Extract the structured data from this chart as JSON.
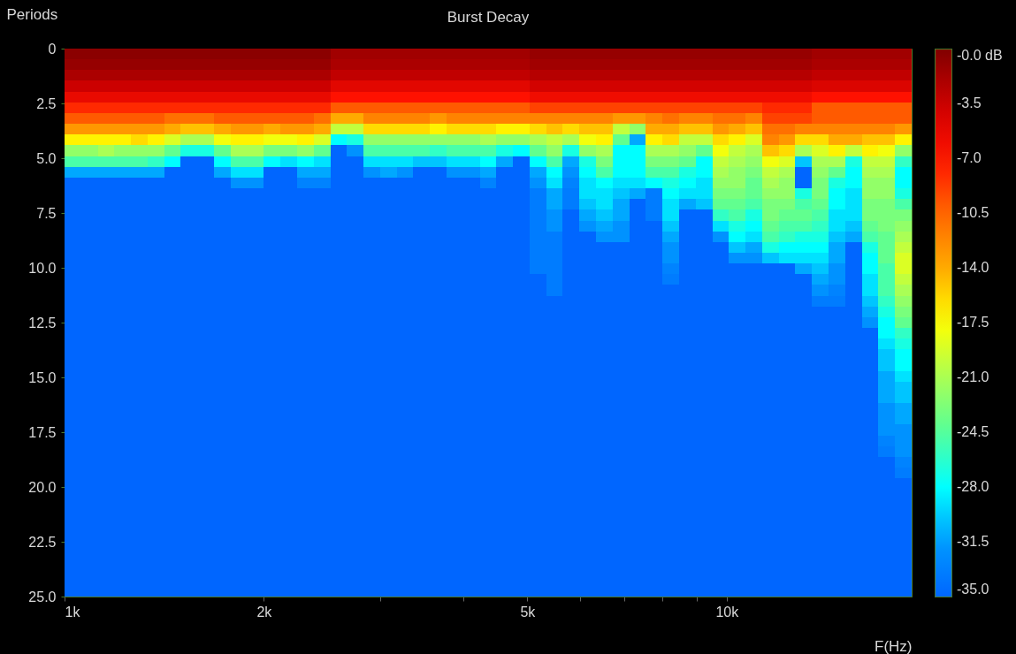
{
  "chart_data": {
    "type": "heatmap",
    "title": "Burst Decay",
    "xlabel": "F(Hz)",
    "ylabel": "Periods",
    "log": "x",
    "x": [
      1029,
      1091,
      1155,
      1223,
      1296,
      1373,
      1455,
      1542,
      1633,
      1730,
      1833,
      1942,
      2058,
      2181,
      2311,
      2448,
      2594,
      2748,
      2911,
      3084,
      3268,
      3462,
      3668,
      3886,
      4117,
      4362,
      4621,
      4896,
      5187,
      5495,
      5822,
      6169,
      6535,
      6924,
      7336,
      7772,
      8234,
      8723,
      9242,
      9791,
      10374,
      10991,
      11644,
      12336,
      13070,
      13847,
      14670,
      15543,
      16467,
      17446,
      18483
    ],
    "xlim": [
      1000,
      19027
    ],
    "xticks": [
      {
        "value": 1000,
        "label": "1k"
      },
      {
        "value": 2000,
        "label": "2k"
      },
      {
        "value": 3000,
        "label": null
      },
      {
        "value": 4000,
        "label": null
      },
      {
        "value": 5000,
        "label": "5k"
      },
      {
        "value": 6000,
        "label": null
      },
      {
        "value": 7000,
        "label": null
      },
      {
        "value": 8000,
        "label": null
      },
      {
        "value": 9000,
        "label": null
      },
      {
        "value": 10000,
        "label": "10k"
      }
    ],
    "ylim": [
      25,
      0
    ],
    "yticks": [
      0,
      2.5,
      {
        "value": 5,
        "label": "5.0"
      },
      7.5,
      {
        "value": 10,
        "label": "10.0"
      },
      12.5,
      {
        "value": 15,
        "label": "15.0"
      },
      17.5,
      {
        "value": 20,
        "label": "20.0"
      },
      22.5,
      {
        "value": 25,
        "label": "25.0"
      }
    ],
    "clim": [
      -35,
      0
    ],
    "cticks": [
      {
        "value": 0,
        "label": "-0.0 dB"
      },
      -3.5,
      {
        "value": -7,
        "label": "-7.0"
      },
      -10.5,
      {
        "value": -14,
        "label": "-14.0"
      },
      -17.5,
      {
        "value": -21,
        "label": "-21.0"
      },
      -24.5,
      {
        "value": -28,
        "label": "-28.0"
      },
      -31.5,
      {
        "value": -35,
        "label": "-35.0"
      }
    ],
    "cells": [
      [
        -0.5,
        -0.5,
        -0.5,
        -0.5,
        -0.5,
        -0.5,
        -0.5,
        -0.5,
        -0.5,
        -0.5,
        -0.5,
        -0.5,
        -0.5,
        -0.5,
        -0.5,
        -0.5,
        -1.5,
        -1.5,
        -1.5,
        -1.5,
        -1.5,
        -1.5,
        -1.5,
        -1.5,
        -1.5,
        -1.5,
        -1.5,
        -1.5,
        -1,
        -1,
        -1,
        -1,
        -1,
        -1,
        -1,
        -1,
        -1,
        -1,
        -1,
        -1,
        -1,
        -1,
        -1,
        -1,
        -1,
        -1.5,
        -1.5,
        -1.5,
        -1.5,
        -1.5,
        -1.5
      ],
      [
        -1,
        -1,
        -1,
        -1,
        -1,
        -1,
        -1,
        -1,
        -1,
        -1,
        -1,
        -1,
        -1,
        -1,
        -1,
        -1,
        -2,
        -2,
        -2,
        -2,
        -2,
        -2,
        -2,
        -2,
        -2,
        -2,
        -2,
        -2,
        -1.5,
        -1.5,
        -1.5,
        -1.5,
        -1.5,
        -1.5,
        -1.5,
        -1.5,
        -1.5,
        -1.5,
        -1.5,
        -1.5,
        -1.5,
        -1.5,
        -1.5,
        -1.5,
        -1.5,
        -2,
        -2,
        -2,
        -2,
        -2,
        -2
      ],
      [
        -2,
        -2,
        -2,
        -2,
        -2,
        -2,
        -2,
        -2,
        -2,
        -2,
        -2,
        -2,
        -2,
        -2,
        -2,
        -2,
        -3,
        -3,
        -3,
        -3,
        -3,
        -3,
        -3,
        -3,
        -3,
        -3,
        -3,
        -3,
        -2.5,
        -2.5,
        -2.5,
        -2.5,
        -2.5,
        -2.5,
        -2.5,
        -2.5,
        -2.5,
        -2.5,
        -2.5,
        -2.5,
        -2.5,
        -2.5,
        -2.5,
        -2.5,
        -2.5,
        -3,
        -3,
        -3,
        -3,
        -3,
        -3
      ],
      [
        -3.5,
        -3.5,
        -3.5,
        -3.5,
        -3.5,
        -3.5,
        -3.5,
        -3.5,
        -3.5,
        -3.5,
        -3.5,
        -3.5,
        -3.5,
        -3.5,
        -3.5,
        -3.5,
        -5,
        -5,
        -5,
        -5,
        -5,
        -5,
        -5,
        -5,
        -5,
        -5,
        -5,
        -5,
        -4,
        -4,
        -4,
        -4,
        -4,
        -4,
        -4,
        -4,
        -4,
        -4,
        -4,
        -4,
        -4,
        -4,
        -4,
        -4,
        -4,
        -4.5,
        -4.5,
        -4.5,
        -4.5,
        -4.5,
        -4.5
      ],
      [
        -5.5,
        -5.5,
        -5.5,
        -5.5,
        -5.5,
        -5.5,
        -5.5,
        -5.5,
        -5.5,
        -5.5,
        -5.5,
        -5.5,
        -5.5,
        -5.5,
        -5.5,
        -5.5,
        -7,
        -7,
        -7,
        -7,
        -7,
        -7,
        -7,
        -7,
        -7,
        -7,
        -7,
        -7,
        -6,
        -6,
        -6,
        -6,
        -6,
        -6,
        -6,
        -6,
        -6,
        -6,
        -6,
        -6,
        -6,
        -6,
        -6,
        -6,
        -6,
        -7,
        -7,
        -7,
        -7,
        -7,
        -7
      ],
      [
        -8,
        -8,
        -8,
        -8,
        -8,
        -8,
        -8,
        -8,
        -8,
        -8,
        -8,
        -8,
        -8,
        -8,
        -8,
        -8,
        -10,
        -10,
        -10,
        -10,
        -10,
        -10,
        -10,
        -10,
        -10,
        -10,
        -10,
        -10,
        -9,
        -9,
        -9,
        -9,
        -9,
        -9,
        -9,
        -9,
        -9,
        -9,
        -9,
        -9,
        -9,
        -9,
        -8,
        -8,
        -8,
        -10,
        -10,
        -10,
        -10,
        -10,
        -10
      ],
      [
        -10,
        -10,
        -10,
        -10,
        -10,
        -10,
        -11,
        -11,
        -11,
        -10,
        -10,
        -10,
        -10,
        -10,
        -10,
        -11,
        -14,
        -14,
        -12,
        -12,
        -12,
        -12,
        -13,
        -12,
        -12,
        -12,
        -12,
        -12,
        -12,
        -12,
        -12,
        -12,
        -12,
        -13,
        -13,
        -12,
        -11,
        -12,
        -12,
        -11,
        -11,
        -12,
        -9,
        -9,
        -9,
        -10,
        -10,
        -10,
        -10,
        -10,
        -10
      ],
      [
        -13,
        -13,
        -13,
        -13,
        -13,
        -13,
        -14,
        -15,
        -15,
        -14,
        -13,
        -13,
        -14,
        -13,
        -13,
        -14,
        -20,
        -20,
        -16,
        -16,
        -16,
        -16,
        -17,
        -16,
        -16,
        -16,
        -17,
        -17,
        -16,
        -15,
        -16,
        -15,
        -15,
        -20,
        -22,
        -14,
        -14,
        -15,
        -15,
        -13,
        -14,
        -15,
        -11,
        -11,
        -12,
        -12,
        -12,
        -12,
        -12,
        -12,
        -13
      ],
      [
        -17,
        -17,
        -17,
        -17,
        -16,
        -17,
        -19,
        -21,
        -21,
        -18,
        -17,
        -17,
        -18,
        -18,
        -17,
        -19,
        -28,
        -27,
        -22,
        -22,
        -22,
        -22,
        -22,
        -22,
        -22,
        -21,
        -22,
        -22,
        -21,
        -20,
        -21,
        -18,
        -17,
        -24,
        -31,
        -17,
        -16,
        -20,
        -20,
        -16,
        -17,
        -19,
        -12,
        -13,
        -16,
        -16,
        -14,
        -14,
        -15,
        -15,
        -17
      ],
      [
        -22,
        -22,
        -21,
        -22,
        -22,
        -22,
        -24,
        -27,
        -27,
        -24,
        -21,
        -21,
        -23,
        -23,
        -22,
        -24,
        -35,
        -32,
        -25,
        -25,
        -25,
        -25,
        -26,
        -25,
        -25,
        -25,
        -27,
        -28,
        -24,
        -22,
        -27,
        -22,
        -21,
        -28,
        -28,
        -21,
        -21,
        -22,
        -24,
        -18,
        -20,
        -21,
        -15,
        -16,
        -21,
        -19,
        -17,
        -20,
        -17,
        -18,
        -22
      ],
      [
        -25,
        -25,
        -25,
        -25,
        -25,
        -26,
        -28,
        -35,
        -35,
        -28,
        -25,
        -25,
        -28,
        -29,
        -28,
        -29,
        -35,
        -35,
        -29,
        -29,
        -29,
        -30,
        -30,
        -29,
        -29,
        -28,
        -31,
        -35,
        -28,
        -25,
        -31,
        -27,
        -23,
        -28,
        -28,
        -23,
        -23,
        -24,
        -28,
        -20,
        -21,
        -22,
        -18,
        -19,
        -30,
        -21,
        -21,
        -27,
        -20,
        -20,
        -26
      ],
      [
        -31,
        -31,
        -31,
        -31,
        -31,
        -31,
        -35,
        -35,
        -35,
        -31,
        -29,
        -29,
        -35,
        -35,
        -31,
        -31,
        -35,
        -35,
        -32,
        -31,
        -32,
        -35,
        -35,
        -32,
        -32,
        -31,
        -35,
        -35,
        -31,
        -28,
        -32,
        -28,
        -25,
        -28,
        -28,
        -25,
        -25,
        -27,
        -28,
        -21,
        -22,
        -23,
        -20,
        -21,
        -35,
        -22,
        -24,
        -28,
        -21,
        -21,
        -28
      ],
      [
        -35,
        -35,
        -35,
        -35,
        -35,
        -35,
        -35,
        -35,
        -35,
        -35,
        -32,
        -32,
        -35,
        -35,
        -33,
        -33,
        -35,
        -35,
        -35,
        -35,
        -35,
        -35,
        -35,
        -35,
        -35,
        -33,
        -35,
        -35,
        -32,
        -29,
        -33,
        -29,
        -28,
        -29,
        -29,
        -28,
        -27,
        -28,
        -29,
        -22,
        -22,
        -24,
        -21,
        -22,
        -35,
        -23,
        -27,
        -28,
        -22,
        -22,
        -28
      ],
      [
        -35,
        -35,
        -35,
        -35,
        -35,
        -35,
        -35,
        -35,
        -35,
        -35,
        -35,
        -35,
        -35,
        -35,
        -35,
        -35,
        -35,
        -35,
        -35,
        -35,
        -35,
        -35,
        -35,
        -35,
        -35,
        -35,
        -35,
        -35,
        -33.5,
        -31,
        -33.5,
        -29,
        -29,
        -30,
        -31,
        -33.5,
        -28,
        -29,
        -29,
        -23,
        -23,
        -24,
        -22,
        -22,
        -27,
        -23,
        -28,
        -29,
        -22,
        -22,
        -27
      ],
      [
        -35,
        -35,
        -35,
        -35,
        -35,
        -35,
        -35,
        -35,
        -35,
        -35,
        -35,
        -35,
        -35,
        -35,
        -35,
        -35,
        -35,
        -35,
        -35,
        -35,
        -35,
        -35,
        -35,
        -35,
        -35,
        -35,
        -35,
        -35,
        -33.5,
        -31,
        -33.5,
        -30,
        -29,
        -31,
        -35,
        -33.5,
        -29,
        -31,
        -30,
        -24,
        -24,
        -25,
        -23,
        -23,
        -25,
        -24,
        -28,
        -29,
        -23,
        -23,
        -25
      ],
      [
        -35,
        -35,
        -35,
        -35,
        -35,
        -35,
        -35,
        -35,
        -35,
        -35,
        -35,
        -35,
        -35,
        -35,
        -35,
        -35,
        -35,
        -35,
        -35,
        -35,
        -35,
        -35,
        -35,
        -35,
        -35,
        -35,
        -35,
        -35,
        -33.5,
        -32,
        -35,
        -31,
        -30,
        -31,
        -35,
        -33.5,
        -29,
        -35,
        -35,
        -26,
        -25,
        -27,
        -23,
        -24,
        -24,
        -25,
        -29,
        -29,
        -23,
        -23,
        -23
      ],
      [
        -35,
        -35,
        -35,
        -35,
        -35,
        -35,
        -35,
        -35,
        -35,
        -35,
        -35,
        -35,
        -35,
        -35,
        -35,
        -35,
        -35,
        -35,
        -35,
        -35,
        -35,
        -35,
        -35,
        -35,
        -35,
        -35,
        -35,
        -35,
        -33.5,
        -32,
        -35,
        -32,
        -31,
        -32,
        -35,
        -35,
        -30,
        -35,
        -35,
        -29,
        -27,
        -28,
        -24,
        -25,
        -25,
        -26,
        -29,
        -30,
        -24,
        -23,
        -22
      ],
      [
        -35,
        -35,
        -35,
        -35,
        -35,
        -35,
        -35,
        -35,
        -35,
        -35,
        -35,
        -35,
        -35,
        -35,
        -35,
        -35,
        -35,
        -35,
        -35,
        -35,
        -35,
        -35,
        -35,
        -35,
        -35,
        -35,
        -35,
        -35,
        -33.5,
        -33.5,
        -35,
        -35,
        -32,
        -32,
        -35,
        -35,
        -31,
        -35,
        -35,
        -32,
        -28,
        -29,
        -25,
        -26,
        -27,
        -27,
        -30,
        -31,
        -25,
        -24,
        -21
      ],
      [
        -35,
        -35,
        -35,
        -35,
        -35,
        -35,
        -35,
        -35,
        -35,
        -35,
        -35,
        -35,
        -35,
        -35,
        -35,
        -35,
        -35,
        -35,
        -35,
        -35,
        -35,
        -35,
        -35,
        -35,
        -35,
        -35,
        -35,
        -35,
        -33.5,
        -33.5,
        -35,
        -35,
        -35,
        -35,
        -35,
        -35,
        -32,
        -35,
        -35,
        -35,
        -30,
        -31,
        -27,
        -28,
        -28,
        -28,
        -31,
        -35,
        -27,
        -24,
        -20
      ],
      [
        -35,
        -35,
        -35,
        -35,
        -35,
        -35,
        -35,
        -35,
        -35,
        -35,
        -35,
        -35,
        -35,
        -35,
        -35,
        -35,
        -35,
        -35,
        -35,
        -35,
        -35,
        -35,
        -35,
        -35,
        -35,
        -35,
        -35,
        -35,
        -33.5,
        -33.5,
        -35,
        -35,
        -35,
        -35,
        -35,
        -35,
        -32,
        -35,
        -35,
        -35,
        -32,
        -32,
        -30,
        -29,
        -29,
        -29,
        -31,
        -35,
        -28,
        -24,
        -19
      ],
      [
        -35,
        -35,
        -35,
        -35,
        -35,
        -35,
        -35,
        -35,
        -35,
        -35,
        -35,
        -35,
        -35,
        -35,
        -35,
        -35,
        -35,
        -35,
        -35,
        -35,
        -35,
        -35,
        -35,
        -35,
        -35,
        -35,
        -35,
        -35,
        -33.5,
        -33.5,
        -35,
        -35,
        -35,
        -35,
        -35,
        -35,
        -33,
        -35,
        -35,
        -35,
        -35,
        -35,
        -35,
        -35,
        -31,
        -30,
        -32,
        -35,
        -28,
        -25,
        -19
      ],
      [
        -35,
        -35,
        -35,
        -35,
        -35,
        -35,
        -35,
        -35,
        -35,
        -35,
        -35,
        -35,
        -35,
        -35,
        -35,
        -35,
        -35,
        -35,
        -35,
        -35,
        -35,
        -35,
        -35,
        -35,
        -35,
        -35,
        -35,
        -35,
        -35,
        -33.5,
        -35,
        -35,
        -35,
        -35,
        -35,
        -35,
        -33.5,
        -35,
        -35,
        -35,
        -35,
        -35,
        -35,
        -35,
        -35,
        -31,
        -32,
        -35,
        -29,
        -25,
        -20
      ],
      [
        -35,
        -35,
        -35,
        -35,
        -35,
        -35,
        -35,
        -35,
        -35,
        -35,
        -35,
        -35,
        -35,
        -35,
        -35,
        -35,
        -35,
        -35,
        -35,
        -35,
        -35,
        -35,
        -35,
        -35,
        -35,
        -35,
        -35,
        -35,
        -35,
        -33.5,
        -35,
        -35,
        -35,
        -35,
        -35,
        -35,
        -35,
        -35,
        -35,
        -35,
        -35,
        -35,
        -35,
        -35,
        -35,
        -32,
        -33,
        -35,
        -29,
        -25,
        -21
      ],
      [
        -35,
        -35,
        -35,
        -35,
        -35,
        -35,
        -35,
        -35,
        -35,
        -35,
        -35,
        -35,
        -35,
        -35,
        -35,
        -35,
        -35,
        -35,
        -35,
        -35,
        -35,
        -35,
        -35,
        -35,
        -35,
        -35,
        -35,
        -35,
        -35,
        -35,
        -35,
        -35,
        -35,
        -35,
        -35,
        -35,
        -35,
        -35,
        -35,
        -35,
        -35,
        -35,
        -35,
        -35,
        -35,
        -33.5,
        -33.5,
        -35,
        -30,
        -26,
        -22
      ],
      [
        -35,
        -35,
        -35,
        -35,
        -35,
        -35,
        -35,
        -35,
        -35,
        -35,
        -35,
        -35,
        -35,
        -35,
        -35,
        -35,
        -35,
        -35,
        -35,
        -35,
        -35,
        -35,
        -35,
        -35,
        -35,
        -35,
        -35,
        -35,
        -35,
        -35,
        -35,
        -35,
        -35,
        -35,
        -35,
        -35,
        -35,
        -35,
        -35,
        -35,
        -35,
        -35,
        -35,
        -35,
        -35,
        -35,
        -35,
        -35,
        -31,
        -27,
        -23
      ],
      [
        -35,
        -35,
        -35,
        -35,
        -35,
        -35,
        -35,
        -35,
        -35,
        -35,
        -35,
        -35,
        -35,
        -35,
        -35,
        -35,
        -35,
        -35,
        -35,
        -35,
        -35,
        -35,
        -35,
        -35,
        -35,
        -35,
        -35,
        -35,
        -35,
        -35,
        -35,
        -35,
        -35,
        -35,
        -35,
        -35,
        -35,
        -35,
        -35,
        -35,
        -35,
        -35,
        -35,
        -35,
        -35,
        -35,
        -35,
        -35,
        -32,
        -28,
        -24
      ],
      [
        -35,
        -35,
        -35,
        -35,
        -35,
        -35,
        -35,
        -35,
        -35,
        -35,
        -35,
        -35,
        -35,
        -35,
        -35,
        -35,
        -35,
        -35,
        -35,
        -35,
        -35,
        -35,
        -35,
        -35,
        -35,
        -35,
        -35,
        -35,
        -35,
        -35,
        -35,
        -35,
        -35,
        -35,
        -35,
        -35,
        -35,
        -35,
        -35,
        -35,
        -35,
        -35,
        -35,
        -35,
        -35,
        -35,
        -35,
        -35,
        -35,
        -28,
        -26
      ],
      [
        -35,
        -35,
        -35,
        -35,
        -35,
        -35,
        -35,
        -35,
        -35,
        -35,
        -35,
        -35,
        -35,
        -35,
        -35,
        -35,
        -35,
        -35,
        -35,
        -35,
        -35,
        -35,
        -35,
        -35,
        -35,
        -35,
        -35,
        -35,
        -35,
        -35,
        -35,
        -35,
        -35,
        -35,
        -35,
        -35,
        -35,
        -35,
        -35,
        -35,
        -35,
        -35,
        -35,
        -35,
        -35,
        -35,
        -35,
        -35,
        -35,
        -29,
        -27
      ],
      [
        -35,
        -35,
        -35,
        -35,
        -35,
        -35,
        -35,
        -35,
        -35,
        -35,
        -35,
        -35,
        -35,
        -35,
        -35,
        -35,
        -35,
        -35,
        -35,
        -35,
        -35,
        -35,
        -35,
        -35,
        -35,
        -35,
        -35,
        -35,
        -35,
        -35,
        -35,
        -35,
        -35,
        -35,
        -35,
        -35,
        -35,
        -35,
        -35,
        -35,
        -35,
        -35,
        -35,
        -35,
        -35,
        -35,
        -35,
        -35,
        -35,
        -30,
        -28
      ],
      [
        -35,
        -35,
        -35,
        -35,
        -35,
        -35,
        -35,
        -35,
        -35,
        -35,
        -35,
        -35,
        -35,
        -35,
        -35,
        -35,
        -35,
        -35,
        -35,
        -35,
        -35,
        -35,
        -35,
        -35,
        -35,
        -35,
        -35,
        -35,
        -35,
        -35,
        -35,
        -35,
        -35,
        -35,
        -35,
        -35,
        -35,
        -35,
        -35,
        -35,
        -35,
        -35,
        -35,
        -35,
        -35,
        -35,
        -35,
        -35,
        -35,
        -30,
        -28
      ],
      [
        -35,
        -35,
        -35,
        -35,
        -35,
        -35,
        -35,
        -35,
        -35,
        -35,
        -35,
        -35,
        -35,
        -35,
        -35,
        -35,
        -35,
        -35,
        -35,
        -35,
        -35,
        -35,
        -35,
        -35,
        -35,
        -35,
        -35,
        -35,
        -35,
        -35,
        -35,
        -35,
        -35,
        -35,
        -35,
        -35,
        -35,
        -35,
        -35,
        -35,
        -35,
        -35,
        -35,
        -35,
        -35,
        -35,
        -35,
        -35,
        -35,
        -31,
        -29
      ],
      [
        -35,
        -35,
        -35,
        -35,
        -35,
        -35,
        -35,
        -35,
        -35,
        -35,
        -35,
        -35,
        -35,
        -35,
        -35,
        -35,
        -35,
        -35,
        -35,
        -35,
        -35,
        -35,
        -35,
        -35,
        -35,
        -35,
        -35,
        -35,
        -35,
        -35,
        -35,
        -35,
        -35,
        -35,
        -35,
        -35,
        -35,
        -35,
        -35,
        -35,
        -35,
        -35,
        -35,
        -35,
        -35,
        -35,
        -35,
        -35,
        -35,
        -31,
        -30
      ],
      [
        -35,
        -35,
        -35,
        -35,
        -35,
        -35,
        -35,
        -35,
        -35,
        -35,
        -35,
        -35,
        -35,
        -35,
        -35,
        -35,
        -35,
        -35,
        -35,
        -35,
        -35,
        -35,
        -35,
        -35,
        -35,
        -35,
        -35,
        -35,
        -35,
        -35,
        -35,
        -35,
        -35,
        -35,
        -35,
        -35,
        -35,
        -35,
        -35,
        -35,
        -35,
        -35,
        -35,
        -35,
        -35,
        -35,
        -35,
        -35,
        -35,
        -31,
        -30
      ],
      [
        -35,
        -35,
        -35,
        -35,
        -35,
        -35,
        -35,
        -35,
        -35,
        -35,
        -35,
        -35,
        -35,
        -35,
        -35,
        -35,
        -35,
        -35,
        -35,
        -35,
        -35,
        -35,
        -35,
        -35,
        -35,
        -35,
        -35,
        -35,
        -35,
        -35,
        -35,
        -35,
        -35,
        -35,
        -35,
        -35,
        -35,
        -35,
        -35,
        -35,
        -35,
        -35,
        -35,
        -35,
        -35,
        -35,
        -35,
        -35,
        -35,
        -32,
        -31
      ],
      [
        -35,
        -35,
        -35,
        -35,
        -35,
        -35,
        -35,
        -35,
        -35,
        -35,
        -35,
        -35,
        -35,
        -35,
        -35,
        -35,
        -35,
        -35,
        -35,
        -35,
        -35,
        -35,
        -35,
        -35,
        -35,
        -35,
        -35,
        -35,
        -35,
        -35,
        -35,
        -35,
        -35,
        -35,
        -35,
        -35,
        -35,
        -35,
        -35,
        -35,
        -35,
        -35,
        -35,
        -35,
        -35,
        -35,
        -35,
        -35,
        -35,
        -32,
        -31
      ],
      [
        -35,
        -35,
        -35,
        -35,
        -35,
        -35,
        -35,
        -35,
        -35,
        -35,
        -35,
        -35,
        -35,
        -35,
        -35,
        -35,
        -35,
        -35,
        -35,
        -35,
        -35,
        -35,
        -35,
        -35,
        -35,
        -35,
        -35,
        -35,
        -35,
        -35,
        -35,
        -35,
        -35,
        -35,
        -35,
        -35,
        -35,
        -35,
        -35,
        -35,
        -35,
        -35,
        -35,
        -35,
        -35,
        -35,
        -35,
        -35,
        -35,
        -32,
        -32
      ],
      [
        -35,
        -35,
        -35,
        -35,
        -35,
        -35,
        -35,
        -35,
        -35,
        -35,
        -35,
        -35,
        -35,
        -35,
        -35,
        -35,
        -35,
        -35,
        -35,
        -35,
        -35,
        -35,
        -35,
        -35,
        -35,
        -35,
        -35,
        -35,
        -35,
        -35,
        -35,
        -35,
        -35,
        -35,
        -35,
        -35,
        -35,
        -35,
        -35,
        -35,
        -35,
        -35,
        -35,
        -35,
        -35,
        -35,
        -35,
        -35,
        -35,
        -33,
        -32
      ],
      [
        -35,
        -35,
        -35,
        -35,
        -35,
        -35,
        -35,
        -35,
        -35,
        -35,
        -35,
        -35,
        -35,
        -35,
        -35,
        -35,
        -35,
        -35,
        -35,
        -35,
        -35,
        -35,
        -35,
        -35,
        -35,
        -35,
        -35,
        -35,
        -35,
        -35,
        -35,
        -35,
        -35,
        -35,
        -35,
        -35,
        -35,
        -35,
        -35,
        -35,
        -35,
        -35,
        -35,
        -35,
        -35,
        -35,
        -35,
        -35,
        -35,
        -33.5,
        -32
      ],
      [
        -35,
        -35,
        -35,
        -35,
        -35,
        -35,
        -35,
        -35,
        -35,
        -35,
        -35,
        -35,
        -35,
        -35,
        -35,
        -35,
        -35,
        -35,
        -35,
        -35,
        -35,
        -35,
        -35,
        -35,
        -35,
        -35,
        -35,
        -35,
        -35,
        -35,
        -35,
        -35,
        -35,
        -35,
        -35,
        -35,
        -35,
        -35,
        -35,
        -35,
        -35,
        -35,
        -35,
        -35,
        -35,
        -35,
        -35,
        -35,
        -35,
        -35,
        -33
      ],
      [
        -35,
        -35,
        -35,
        -35,
        -35,
        -35,
        -35,
        -35,
        -35,
        -35,
        -35,
        -35,
        -35,
        -35,
        -35,
        -35,
        -35,
        -35,
        -35,
        -35,
        -35,
        -35,
        -35,
        -35,
        -35,
        -35,
        -35,
        -35,
        -35,
        -35,
        -35,
        -35,
        -35,
        -35,
        -35,
        -35,
        -35,
        -35,
        -35,
        -35,
        -35,
        -35,
        -35,
        -35,
        -35,
        -35,
        -35,
        -35,
        -35,
        -35,
        -33.5
      ],
      [
        -35,
        -35,
        -35,
        -35,
        -35,
        -35,
        -35,
        -35,
        -35,
        -35,
        -35,
        -35,
        -35,
        -35,
        -35,
        -35,
        -35,
        -35,
        -35,
        -35,
        -35,
        -35,
        -35,
        -35,
        -35,
        -35,
        -35,
        -35,
        -35,
        -35,
        -35,
        -35,
        -35,
        -35,
        -35,
        -35,
        -35,
        -35,
        -35,
        -35,
        -35,
        -35,
        -35,
        -35,
        -35,
        -35,
        -35,
        -35,
        -35,
        -35,
        -35
      ],
      [
        -35,
        -35,
        -35,
        -35,
        -35,
        -35,
        -35,
        -35,
        -35,
        -35,
        -35,
        -35,
        -35,
        -35,
        -35,
        -35,
        -35,
        -35,
        -35,
        -35,
        -35,
        -35,
        -35,
        -35,
        -35,
        -35,
        -35,
        -35,
        -35,
        -35,
        -35,
        -35,
        -35,
        -35,
        -35,
        -35,
        -35,
        -35,
        -35,
        -35,
        -35,
        -35,
        -35,
        -35,
        -35,
        -35,
        -35,
        -35,
        -35,
        -35,
        -35
      ],
      [
        -35,
        -35,
        -35,
        -35,
        -35,
        -35,
        -35,
        -35,
        -35,
        -35,
        -35,
        -35,
        -35,
        -35,
        -35,
        -35,
        -35,
        -35,
        -35,
        -35,
        -35,
        -35,
        -35,
        -35,
        -35,
        -35,
        -35,
        -35,
        -35,
        -35,
        -35,
        -35,
        -35,
        -35,
        -35,
        -35,
        -35,
        -35,
        -35,
        -35,
        -35,
        -35,
        -35,
        -35,
        -35,
        -35,
        -35,
        -35,
        -35,
        -35,
        -35
      ],
      [
        -35,
        -35,
        -35,
        -35,
        -35,
        -35,
        -35,
        -35,
        -35,
        -35,
        -35,
        -35,
        -35,
        -35,
        -35,
        -35,
        -35,
        -35,
        -35,
        -35,
        -35,
        -35,
        -35,
        -35,
        -35,
        -35,
        -35,
        -35,
        -35,
        -35,
        -35,
        -35,
        -35,
        -35,
        -35,
        -35,
        -35,
        -35,
        -35,
        -35,
        -35,
        -35,
        -35,
        -35,
        -35,
        -35,
        -35,
        -35,
        -35,
        -35,
        -35
      ],
      [
        -35,
        -35,
        -35,
        -35,
        -35,
        -35,
        -35,
        -35,
        -35,
        -35,
        -35,
        -35,
        -35,
        -35,
        -35,
        -35,
        -35,
        -35,
        -35,
        -35,
        -35,
        -35,
        -35,
        -35,
        -35,
        -35,
        -35,
        -35,
        -35,
        -35,
        -35,
        -35,
        -35,
        -35,
        -35,
        -35,
        -35,
        -35,
        -35,
        -35,
        -35,
        -35,
        -35,
        -35,
        -35,
        -35,
        -35,
        -35,
        -35,
        -35,
        -35
      ],
      [
        -35,
        -35,
        -35,
        -35,
        -35,
        -35,
        -35,
        -35,
        -35,
        -35,
        -35,
        -35,
        -35,
        -35,
        -35,
        -35,
        -35,
        -35,
        -35,
        -35,
        -35,
        -35,
        -35,
        -35,
        -35,
        -35,
        -35,
        -35,
        -35,
        -35,
        -35,
        -35,
        -35,
        -35,
        -35,
        -35,
        -35,
        -35,
        -35,
        -35,
        -35,
        -35,
        -35,
        -35,
        -35,
        -35,
        -35,
        -35,
        -35,
        -35,
        -35
      ],
      [
        -35,
        -35,
        -35,
        -35,
        -35,
        -35,
        -35,
        -35,
        -35,
        -35,
        -35,
        -35,
        -35,
        -35,
        -35,
        -35,
        -35,
        -35,
        -35,
        -35,
        -35,
        -35,
        -35,
        -35,
        -35,
        -35,
        -35,
        -35,
        -35,
        -35,
        -35,
        -35,
        -35,
        -35,
        -35,
        -35,
        -35,
        -35,
        -35,
        -35,
        -35,
        -35,
        -35,
        -35,
        -35,
        -35,
        -35,
        -35,
        -35,
        -35,
        -35
      ],
      [
        -35,
        -35,
        -35,
        -35,
        -35,
        -35,
        -35,
        -35,
        -35,
        -35,
        -35,
        -35,
        -35,
        -35,
        -35,
        -35,
        -35,
        -35,
        -35,
        -35,
        -35,
        -35,
        -35,
        -35,
        -35,
        -35,
        -35,
        -35,
        -35,
        -35,
        -35,
        -35,
        -35,
        -35,
        -35,
        -35,
        -35,
        -35,
        -35,
        -35,
        -35,
        -35,
        -35,
        -35,
        -35,
        -35,
        -35,
        -35,
        -35,
        -35,
        -35
      ],
      [
        -35,
        -35,
        -35,
        -35,
        -35,
        -35,
        -35,
        -35,
        -35,
        -35,
        -35,
        -35,
        -35,
        -35,
        -35,
        -35,
        -35,
        -35,
        -35,
        -35,
        -35,
        -35,
        -35,
        -35,
        -35,
        -35,
        -35,
        -35,
        -35,
        -35,
        -35,
        -35,
        -35,
        -35,
        -35,
        -35,
        -35,
        -35,
        -35,
        -35,
        -35,
        -35,
        -35,
        -35,
        -35,
        -35,
        -35,
        -35,
        -35,
        -35,
        -35
      ],
      [
        -35,
        -35,
        -35,
        -35,
        -35,
        -35,
        -35,
        -35,
        -35,
        -35,
        -35,
        -35,
        -35,
        -35,
        -35,
        -35,
        -35,
        -35,
        -35,
        -35,
        -35,
        -35,
        -35,
        -35,
        -35,
        -35,
        -35,
        -35,
        -35,
        -35,
        -35,
        -35,
        -35,
        -35,
        -35,
        -35,
        -35,
        -35,
        -35,
        -35,
        -35,
        -35,
        -35,
        -35,
        -35,
        -35,
        -35,
        -35,
        -35,
        -35,
        -35
      ],
      [
        -35,
        -35,
        -35,
        -35,
        -35,
        -35,
        -35,
        -35,
        -35,
        -35,
        -35,
        -35,
        -35,
        -35,
        -35,
        -35,
        -35,
        -35,
        -35,
        -35,
        -35,
        -35,
        -35,
        -35,
        -35,
        -35,
        -35,
        -35,
        -35,
        -35,
        -35,
        -35,
        -35,
        -35,
        -35,
        -35,
        -35,
        -35,
        -35,
        -35,
        -35,
        -35,
        -35,
        -35,
        -35,
        -35,
        -35,
        -35,
        -35,
        -35,
        -35
      ]
    ]
  }
}
